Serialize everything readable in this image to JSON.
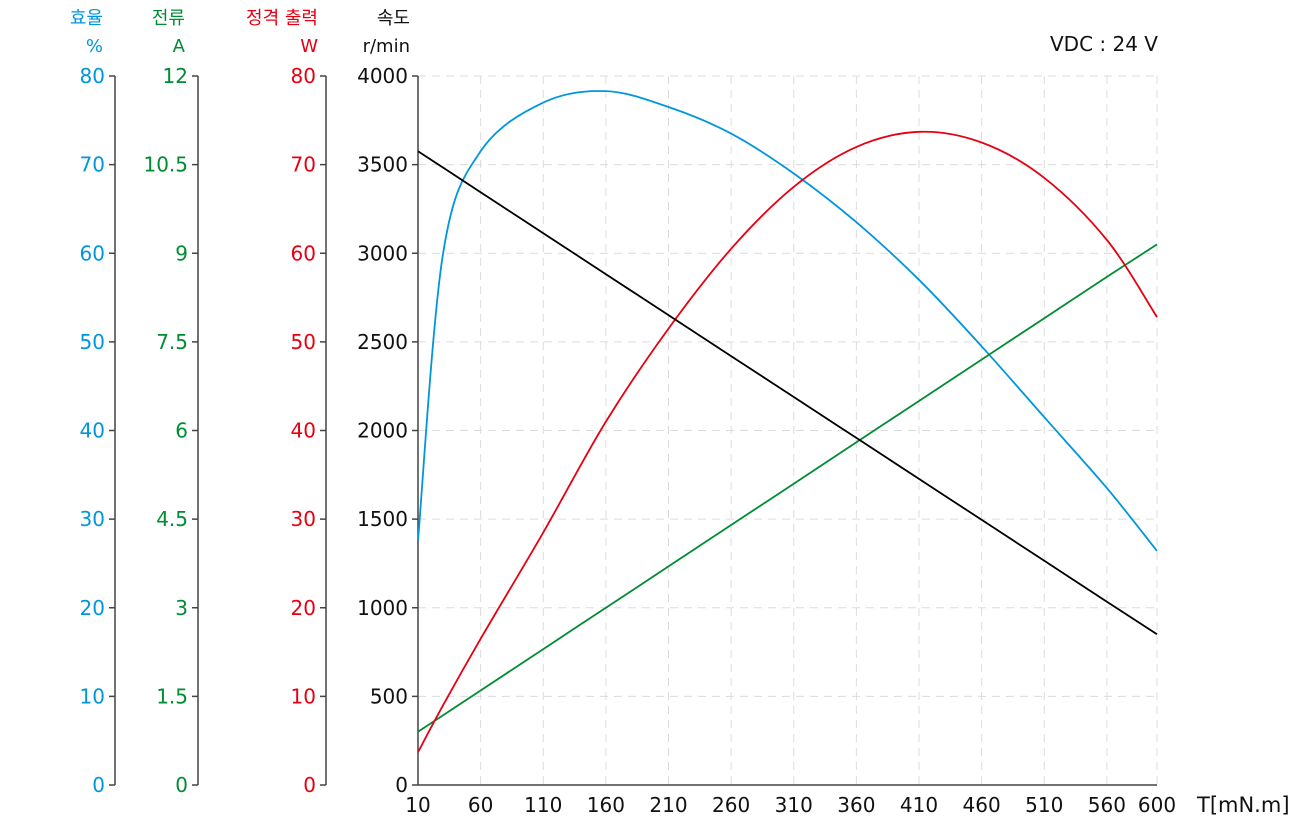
{
  "chart_data": {
    "type": "line",
    "title": "",
    "annotation": "VDC : 24 V",
    "xlabel": "T[mN.m]",
    "x_ticks": [
      10,
      60,
      110,
      160,
      210,
      260,
      310,
      360,
      410,
      460,
      510,
      560,
      600
    ],
    "xlim": [
      10,
      600
    ],
    "grid": true,
    "axes": [
      {
        "name": "efficiency",
        "title": "효율",
        "unit": "%",
        "color": "#0096dc",
        "ylim": [
          0,
          80
        ],
        "ticks": [
          "0",
          "10",
          "20",
          "30",
          "40",
          "50",
          "60",
          "70",
          "80"
        ]
      },
      {
        "name": "current",
        "title": "전류",
        "unit": "A",
        "color": "#008c32",
        "ylim": [
          0,
          12
        ],
        "ticks": [
          "0",
          "1.5",
          "3",
          "4.5",
          "6",
          "7.5",
          "9",
          "10.5",
          "12"
        ]
      },
      {
        "name": "output",
        "title": "정격 출력",
        "unit": "W",
        "color": "#e60012",
        "ylim": [
          0,
          80
        ],
        "ticks": [
          "0",
          "10",
          "20",
          "30",
          "40",
          "50",
          "60",
          "70",
          "80"
        ]
      },
      {
        "name": "speed",
        "title": "속도",
        "unit": "r/min",
        "color": "#000000",
        "ylim": [
          0,
          4000
        ],
        "ticks": [
          "0",
          "500",
          "1000",
          "1500",
          "2000",
          "2500",
          "3000",
          "3500",
          "4000"
        ]
      }
    ],
    "x": [
      10,
      30,
      60,
      110,
      160,
      210,
      260,
      310,
      360,
      410,
      460,
      510,
      560,
      600
    ],
    "series": [
      {
        "name": "효율 (%)",
        "axis": "efficiency",
        "color": "#0096dc",
        "values": [
          27.6,
          60.0,
          71.5,
          77.0,
          78.3,
          76.5,
          73.5,
          69.0,
          63.5,
          57.0,
          49.5,
          41.5,
          33.5,
          26.4
        ]
      },
      {
        "name": "전류 (A)",
        "axis": "current",
        "color": "#008c32",
        "values": [
          0.9,
          1.18,
          1.6,
          2.3,
          3.0,
          3.7,
          4.4,
          5.1,
          5.8,
          6.5,
          7.2,
          7.9,
          8.6,
          9.15
        ]
      },
      {
        "name": "정격 출력 (W)",
        "axis": "output",
        "color": "#e60012",
        "values": [
          3.7,
          9.0,
          16.5,
          28.5,
          41.0,
          51.5,
          60.5,
          67.5,
          72.0,
          73.7,
          72.5,
          68.5,
          61.5,
          52.8
        ]
      },
      {
        "name": "속도 (r/min)",
        "axis": "speed",
        "color": "#000000",
        "values": [
          3575,
          3483,
          3344,
          3113,
          2882,
          2651,
          2420,
          2189,
          1958,
          1727,
          1496,
          1265,
          1034,
          850
        ]
      }
    ]
  }
}
